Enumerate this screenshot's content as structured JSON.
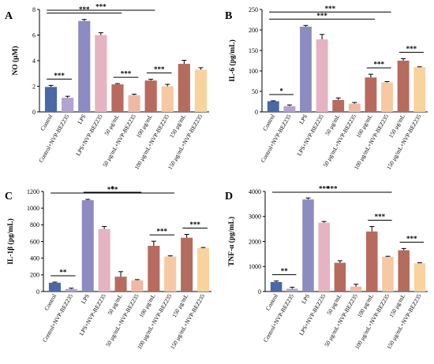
{
  "colors": {
    "palette": [
      "#4a68a6",
      "#b3a3d2",
      "#8c8cc2",
      "#e6b3c3",
      "#b96a5f",
      "#f0b9a6",
      "#b86a5e",
      "#f6c9a2",
      "#b36c5e",
      "#f8d39e"
    ],
    "axis": "#000000"
  },
  "chart_data": [
    {
      "type": "bar",
      "panel_label": "A",
      "ylabel": "NO (μM)",
      "ylim": [
        0,
        8
      ],
      "yticks": [
        "0",
        "2",
        "4",
        "6",
        "8"
      ],
      "categories": [
        "Control",
        "Control+NVP-BEZ235",
        "LPS",
        "LPS+NVP-BEZ235",
        "50 μg/mL",
        "50 μg/mL+NVP-BEZ235",
        "100 μg/mL",
        "100 μg/mL+NVP-BEZ235",
        "150 μg/mL",
        "150 μg/mL+NVP-BEZ235"
      ],
      "values": [
        1.95,
        1.1,
        7.1,
        6.0,
        2.15,
        1.3,
        2.45,
        2.0,
        3.75,
        3.3
      ],
      "errors": [
        0.12,
        0.12,
        0.12,
        0.18,
        0.06,
        0.08,
        0.1,
        0.15,
        0.28,
        0.15
      ],
      "significance": [
        {
          "from": 0,
          "to": 1,
          "label": "***"
        },
        {
          "from": 0,
          "to": 4,
          "label": "***"
        },
        {
          "from": 0,
          "to": 6,
          "label": "***"
        },
        {
          "from": 4,
          "to": 5,
          "label": "***"
        },
        {
          "from": 6,
          "to": 7,
          "label": "***"
        }
      ]
    },
    {
      "type": "bar",
      "panel_label": "B",
      "ylabel": "IL-6 (pg/mL)",
      "ylim": [
        0,
        250
      ],
      "yticks": [
        "0",
        "50",
        "100",
        "150",
        "200",
        "250"
      ],
      "categories": [
        "Control",
        "Control+NVP-BEZ235",
        "LPS",
        "LPS+NVP-BEZ235",
        "50 μg/mL",
        "50 μg/mL+NVP-BEZ235",
        "100 μg/mL",
        "100 μg/mL+NVP-BEZ235",
        "150 μg/mL",
        "150 μg/mL+NVP-BEZ235"
      ],
      "values": [
        26,
        14,
        208,
        177,
        29,
        20,
        84,
        72,
        125,
        109
      ],
      "errors": [
        1,
        3,
        3,
        12,
        5,
        3,
        8,
        2,
        5,
        1
      ],
      "significance": [
        {
          "from": 0,
          "to": 1,
          "label": "*"
        },
        {
          "from": 0,
          "to": 6,
          "label": "***"
        },
        {
          "from": 0,
          "to": 7,
          "label": "***"
        },
        {
          "from": 6,
          "to": 7,
          "label": "***"
        },
        {
          "from": 8,
          "to": 9,
          "label": "***"
        }
      ]
    },
    {
      "type": "bar",
      "panel_label": "C",
      "ylabel": "IL-1β (pg/mL)",
      "ylim": [
        0,
        1200
      ],
      "yticks": [
        "0",
        "200",
        "400",
        "600",
        "800",
        "1000",
        "1200"
      ],
      "categories": [
        "Control",
        "Control+NVP-BEZ235",
        "LPS",
        "LPS+NVP-BEZ235",
        "50 μg/mL",
        "50 μg/mL+NVP-BEZ235",
        "100 μg/mL",
        "100 μg/mL+NVP-BEZ235",
        "150 μg/mL",
        "150 μg/mL+NVP-BEZ235"
      ],
      "values": [
        105,
        30,
        1095,
        750,
        178,
        135,
        548,
        420,
        645,
        520
      ],
      "errors": [
        8,
        10,
        10,
        30,
        60,
        8,
        55,
        8,
        40,
        8
      ],
      "significance": [
        {
          "from": 0,
          "to": 1,
          "label": "**"
        },
        {
          "from": 0,
          "to": 7,
          "label": "***"
        },
        {
          "from": 2,
          "to": 5,
          "label": "*"
        },
        {
          "from": 6,
          "to": 7,
          "label": "***"
        },
        {
          "from": 8,
          "to": 9,
          "label": "***"
        }
      ]
    },
    {
      "type": "bar",
      "panel_label": "D",
      "ylabel": "TNF-α (pg/mL)",
      "ylim": [
        0,
        4000
      ],
      "yticks": [
        "0",
        "1000",
        "2000",
        "3000",
        "4000"
      ],
      "categories": [
        "Control",
        "Control+NVP-BEZ235",
        "LPS",
        "LPS+NVP-BEZ235",
        "50 μg/mL",
        "50 μg/mL+NVP-BEZ235",
        "100 μg/mL",
        "100 μg/mL+NVP-BEZ235",
        "150 μg/mL",
        "150 μg/mL+NVP-BEZ235"
      ],
      "values": [
        380,
        110,
        3680,
        2750,
        1150,
        200,
        2400,
        1390,
        1650,
        1130
      ],
      "errors": [
        40,
        60,
        60,
        50,
        80,
        90,
        200,
        20,
        70,
        20
      ],
      "significance": [
        {
          "from": 0,
          "to": 1,
          "label": "**"
        },
        {
          "from": 0,
          "to": 6,
          "label": "***"
        },
        {
          "from": 0,
          "to": 7,
          "label": "***"
        },
        {
          "from": 6,
          "to": 7,
          "label": "***"
        },
        {
          "from": 8,
          "to": 9,
          "label": "***"
        }
      ]
    }
  ]
}
